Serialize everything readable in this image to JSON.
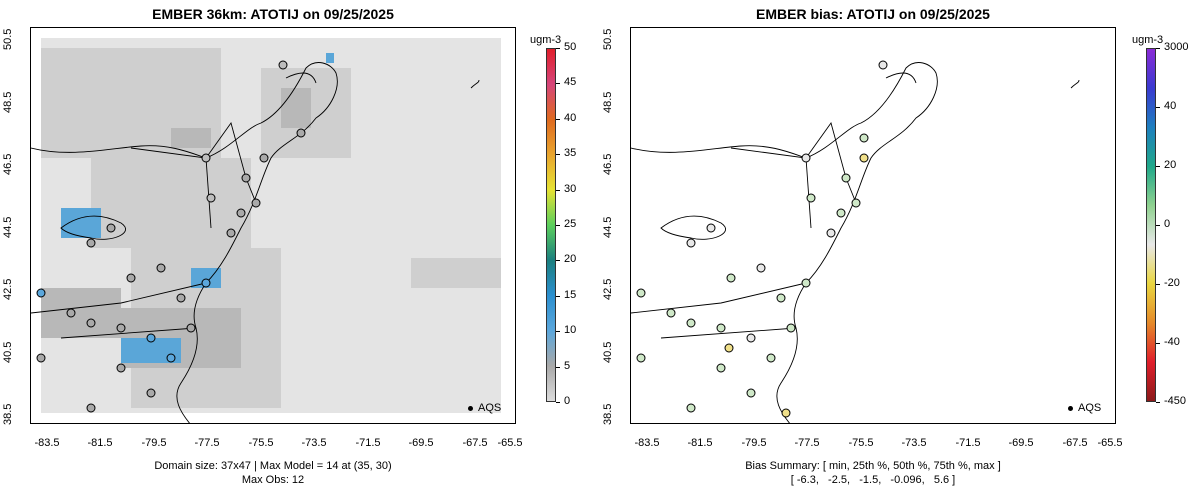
{
  "panels": [
    {
      "title": "EMBER 36km: ATOTIJ on 09/25/2025",
      "legend_unit": "ugm-3",
      "legend_ticks": [
        "0",
        "5",
        "10",
        "15",
        "20",
        "25",
        "30",
        "35",
        "40",
        "45",
        "50"
      ],
      "legend_colors": [
        "#dcdcdc",
        "#a9a9a9",
        "#5ba7dc",
        "#2b8fcf",
        "#1b7f7f",
        "#5ccf5c",
        "#e6e234",
        "#e9a52e",
        "#df6a20",
        "#d6457a",
        "#e01e2b"
      ],
      "caption_line1": "Domain size: 37x47 | Max Model = 14 at (35, 30)",
      "caption_line2": "Max Obs: 12",
      "aqs_label": "AQS"
    },
    {
      "title": "EMBER bias: ATOTIJ on 09/25/2025",
      "legend_unit": "ugm-3",
      "legend_ticks": [
        "3000",
        "40",
        "20",
        "0",
        "-20",
        "-40",
        "-450"
      ],
      "legend_colors": [
        "#8b1a1a",
        "#e01e2b",
        "#e58a2a",
        "#e9d640",
        "#e8e8e8",
        "#8fd18f",
        "#20a88a",
        "#1e7fbf",
        "#3a3ad0",
        "#8a2bd6"
      ],
      "caption_line1": "Bias Summary: [ min, 25th %, 50th %, 75th %, max ]",
      "caption_line2": "[ -6.3,   -2.5,   -1.5,   -0.096,   5.6 ]",
      "aqs_label": "AQS"
    }
  ],
  "axes": {
    "y_ticks": [
      "50.5",
      "48.5",
      "46.5",
      "44.5",
      "42.5",
      "40.5",
      "38.5"
    ],
    "x_ticks": [
      "-83.5",
      "-81.5",
      "-79.5",
      "-77.5",
      "-75.5",
      "-73.5",
      "-71.5",
      "-69.5",
      "-67.5",
      "-65.5"
    ]
  }
}
